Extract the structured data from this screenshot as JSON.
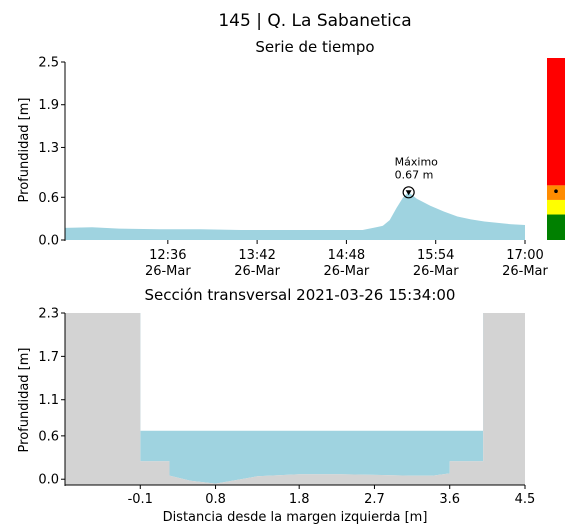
{
  "page": {
    "title": "145 | Q. La Sabanetica"
  },
  "chart_data": [
    {
      "type": "area",
      "title": "Serie de tiempo",
      "xlabel": "",
      "ylabel": "Profundidad [m]",
      "ylim": [
        0,
        2.5
      ],
      "yticks": [
        "0.0",
        "0.6",
        "1.3",
        "1.9",
        "2.5"
      ],
      "xticks": [
        {
          "time": "12:36",
          "date": "26-Mar"
        },
        {
          "time": "13:42",
          "date": "26-Mar"
        },
        {
          "time": "14:48",
          "date": "26-Mar"
        },
        {
          "time": "15:54",
          "date": "26-Mar"
        },
        {
          "time": "17:00",
          "date": "26-Mar"
        }
      ],
      "x_range": [
        "11:20",
        "17:00"
      ],
      "series": [
        {
          "color": "#9fd3e0",
          "x": [
            "11:20",
            "11:40",
            "12:00",
            "12:30",
            "13:00",
            "13:30",
            "14:00",
            "14:30",
            "14:50",
            "15:00",
            "15:10",
            "15:15",
            "15:20",
            "15:25",
            "15:30",
            "15:34",
            "15:40",
            "15:50",
            "16:00",
            "16:10",
            "16:20",
            "16:30",
            "16:40",
            "16:50",
            "17:00"
          ],
          "y": [
            0.17,
            0.18,
            0.16,
            0.15,
            0.15,
            0.14,
            0.14,
            0.14,
            0.14,
            0.14,
            0.18,
            0.2,
            0.28,
            0.45,
            0.6,
            0.67,
            0.58,
            0.48,
            0.4,
            0.33,
            0.29,
            0.26,
            0.24,
            0.22,
            0.21
          ]
        }
      ],
      "annotation": {
        "label": "Máximo",
        "value": "0.67 m",
        "x": "15:34",
        "y": 0.67
      },
      "legend": "none",
      "grid": false
    },
    {
      "type": "area",
      "title": "Sección transversal 2021-03-26 15:34:00",
      "xlabel": "Distancia desde la margen izquierda [m]",
      "ylabel": "Profundidad [m]",
      "xlim": [
        -1.0,
        4.5
      ],
      "ylim": [
        -0.08,
        2.3
      ],
      "xticks": [
        "-0.1",
        "0.8",
        "1.8",
        "2.7",
        "3.6",
        "4.5"
      ],
      "yticks": [
        "0.0",
        "0.6",
        "1.1",
        "1.7",
        "2.3"
      ],
      "water_level": 0.67,
      "water_color": "#9fd3e0",
      "ground_color": "#d3d3d3",
      "section_profile": {
        "x": [
          -1.0,
          -0.1,
          -0.1,
          0.25,
          0.25,
          0.5,
          0.8,
          1.0,
          1.3,
          1.8,
          2.3,
          2.7,
          3.1,
          3.4,
          3.6,
          3.6,
          4.0,
          4.0,
          4.5
        ],
        "y": [
          2.3,
          2.3,
          0.25,
          0.25,
          0.05,
          -0.02,
          -0.06,
          -0.02,
          0.04,
          0.07,
          0.07,
          0.06,
          0.05,
          0.05,
          0.08,
          0.25,
          0.25,
          2.3,
          2.3
        ]
      }
    }
  ],
  "alert_bar": {
    "segments": [
      {
        "color": "#ff0000",
        "from": 0.75,
        "to": 2.5
      },
      {
        "color": "#ff8c00",
        "from": 0.55,
        "to": 0.75
      },
      {
        "color": "#ffff00",
        "from": 0.35,
        "to": 0.55
      },
      {
        "color": "#008000",
        "from": 0.0,
        "to": 0.35
      }
    ],
    "marker_value": 0.67,
    "range": [
      0,
      2.5
    ]
  }
}
